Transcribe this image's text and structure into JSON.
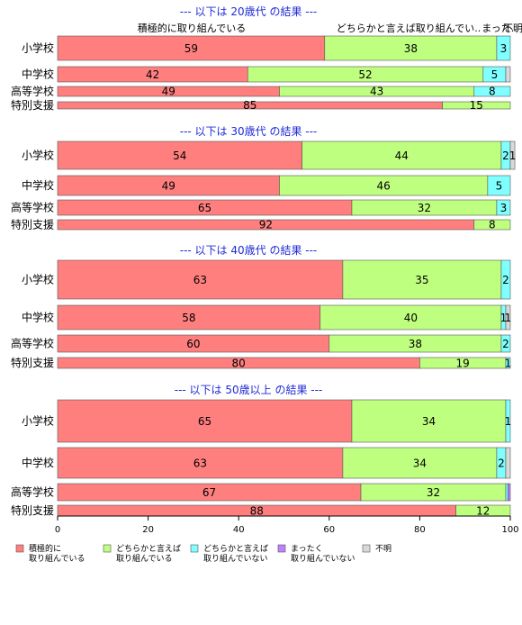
{
  "chart_data": {
    "type": "bar",
    "orientation": "horizontal",
    "stacked": true,
    "xlim": [
      0,
      100
    ],
    "x_ticks": [
      "0",
      "20",
      "40",
      "60",
      "80",
      "100"
    ],
    "top_labels": [
      "積極的に取り組んでいる",
      "どちらかと言えば取り組んでい..",
      "まった..",
      "不明"
    ],
    "legend": {
      "placement": "bottom",
      "entries": [
        {
          "lines": [
            "積極的に",
            "取り組んでいる"
          ],
          "color": "#ff7f7f"
        },
        {
          "lines": [
            "どちらかと言えば",
            "取り組んでいる"
          ],
          "color": "#bfff7f"
        },
        {
          "lines": [
            "どちらかと言えば",
            "取り組んでいない"
          ],
          "color": "#7fffff"
        },
        {
          "lines": [
            "まったく",
            "取り組んでいない"
          ],
          "color": "#bf7fff"
        },
        {
          "lines": [
            "不明"
          ],
          "color": "#d9d9d9"
        }
      ]
    },
    "colors": [
      "#ff7f7f",
      "#bfff7f",
      "#7fffff",
      "#bf7fff",
      "#d9d9d9"
    ],
    "groups": [
      {
        "title": "--- 以下は 20歳代 の結果 ---",
        "rows": [
          {
            "label": "小学校",
            "values": [
              59,
              38,
              3,
              0,
              0
            ],
            "shown": [
              "59",
              "38",
              "3",
              "",
              ""
            ]
          },
          {
            "label": "中学校",
            "values": [
              42,
              52,
              5,
              0,
              1
            ],
            "shown": [
              "42",
              "52",
              "5",
              "",
              ""
            ]
          },
          {
            "label": "高等学校",
            "values": [
              49,
              43,
              8,
              0,
              0
            ],
            "shown": [
              "49",
              "43",
              "8",
              "",
              ""
            ]
          },
          {
            "label": "特別支援",
            "values": [
              85,
              15,
              0,
              0,
              0
            ],
            "shown": [
              "85",
              "15",
              "",
              "",
              ""
            ]
          }
        ]
      },
      {
        "title": "--- 以下は 30歳代 の結果 ---",
        "rows": [
          {
            "label": "小学校",
            "values": [
              54,
              44,
              2,
              0,
              1
            ],
            "shown": [
              "54",
              "44",
              "2",
              "",
              "1"
            ]
          },
          {
            "label": "中学校",
            "values": [
              49,
              46,
              5,
              0,
              0
            ],
            "shown": [
              "49",
              "46",
              "5",
              "",
              ""
            ]
          },
          {
            "label": "高等学校",
            "values": [
              65,
              32,
              3,
              0,
              0
            ],
            "shown": [
              "65",
              "32",
              "3",
              "",
              ""
            ]
          },
          {
            "label": "特別支援",
            "values": [
              92,
              8,
              0,
              0,
              0
            ],
            "shown": [
              "92",
              "8",
              "",
              "",
              ""
            ]
          }
        ]
      },
      {
        "title": "--- 以下は 40歳代 の結果 ---",
        "rows": [
          {
            "label": "小学校",
            "values": [
              63,
              35,
              2,
              0,
              0
            ],
            "shown": [
              "63",
              "35",
              "2",
              "",
              ""
            ]
          },
          {
            "label": "中学校",
            "values": [
              58,
              40,
              1,
              0,
              1
            ],
            "shown": [
              "58",
              "40",
              "1",
              "",
              "1"
            ]
          },
          {
            "label": "高等学校",
            "values": [
              60,
              38,
              2,
              0,
              0
            ],
            "shown": [
              "60",
              "38",
              "2",
              "",
              ""
            ]
          },
          {
            "label": "特別支援",
            "values": [
              80,
              19,
              1,
              0,
              0
            ],
            "shown": [
              "80",
              "19",
              "1",
              "",
              ""
            ]
          }
        ]
      },
      {
        "title": "--- 以下は 50歳以上 の結果 ---",
        "rows": [
          {
            "label": "小学校",
            "values": [
              65,
              34,
              1,
              0,
              0
            ],
            "shown": [
              "65",
              "34",
              "1",
              "",
              ""
            ]
          },
          {
            "label": "中学校",
            "values": [
              63,
              34,
              2,
              0,
              1
            ],
            "shown": [
              "63",
              "34",
              "2",
              "",
              ""
            ]
          },
          {
            "label": "高等学校",
            "values": [
              67,
              32,
              0.5,
              0.5,
              0
            ],
            "shown": [
              "67",
              "32",
              "",
              "",
              ""
            ]
          },
          {
            "label": "特別支援",
            "values": [
              88,
              12,
              0,
              0,
              0
            ],
            "shown": [
              "88",
              "12",
              "",
              "",
              ""
            ]
          }
        ]
      }
    ]
  }
}
